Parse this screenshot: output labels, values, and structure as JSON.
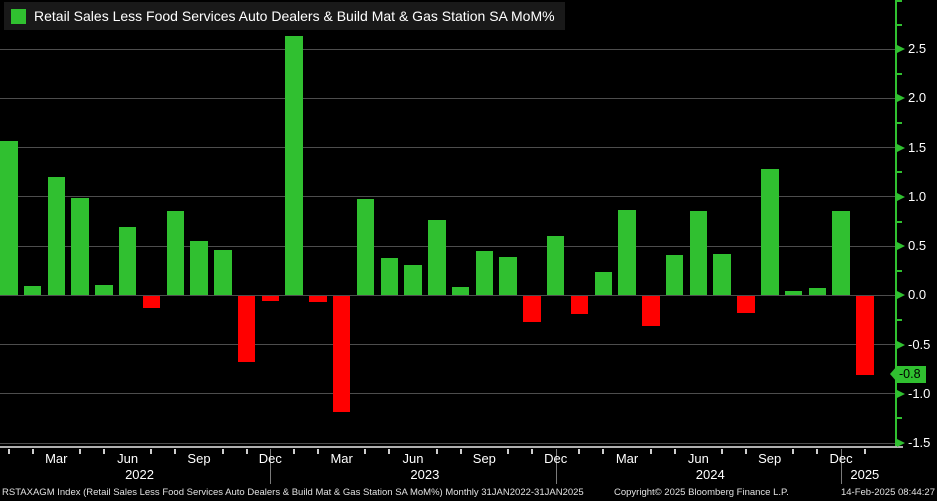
{
  "legend": {
    "label": "Retail Sales Less Food Services Auto Dealers & Build Mat & Gas Station SA MoM%",
    "swatch_color": "#30c030"
  },
  "footer": {
    "left": "RSTAXAGM Index (Retail Sales Less Food Services Auto Dealers & Build Mat & Gas Station SA MoM%)  Monthly 31JAN2022-31JAN2025",
    "center": "Copyright© 2025 Bloomberg Finance L.P.",
    "right": "14-Feb-2025 08:44:27"
  },
  "colors": {
    "background": "#000000",
    "positive": "#30c030",
    "negative": "#ff0000",
    "grid": "#4d4d4d",
    "y_axis": "#30c030",
    "x_axis": "#b0b0b0",
    "text": "#ffffff",
    "badge_text": "#000000"
  },
  "chart_data": {
    "type": "bar",
    "title": "Retail Sales Less Food Services Auto Dealers & Build Mat & Gas Station SA MoM%",
    "x": [
      "Jan 2022",
      "Feb 2022",
      "Mar 2022",
      "Apr 2022",
      "May 2022",
      "Jun 2022",
      "Jul 2022",
      "Aug 2022",
      "Sep 2022",
      "Oct 2022",
      "Nov 2022",
      "Dec 2022",
      "Jan 2023",
      "Feb 2023",
      "Mar 2023",
      "Apr 2023",
      "May 2023",
      "Jun 2023",
      "Jul 2023",
      "Aug 2023",
      "Sep 2023",
      "Oct 2023",
      "Nov 2023",
      "Dec 2023",
      "Jan 2024",
      "Feb 2024",
      "Mar 2024",
      "Apr 2024",
      "May 2024",
      "Jun 2024",
      "Jul 2024",
      "Aug 2024",
      "Sep 2024",
      "Oct 2024",
      "Nov 2024",
      "Dec 2024",
      "Jan 2025"
    ],
    "values": [
      1.57,
      0.1,
      1.2,
      0.99,
      0.11,
      0.69,
      -0.12,
      0.86,
      0.55,
      0.46,
      -0.67,
      -0.05,
      2.63,
      -0.06,
      -1.17,
      0.98,
      0.38,
      0.31,
      0.77,
      0.09,
      0.45,
      0.39,
      -0.26,
      0.6,
      -0.18,
      0.24,
      0.87,
      -0.3,
      0.41,
      0.86,
      0.42,
      -0.17,
      1.28,
      0.04,
      0.07,
      0.86,
      -0.8
    ],
    "ylim": [
      -1.54,
      3.0
    ],
    "yticks": [
      2.5,
      2.0,
      1.5,
      1.0,
      0.5,
      0.0,
      -0.5,
      -1.0,
      -1.5
    ],
    "yticks_minor": [
      3.0,
      2.75,
      2.25,
      1.75,
      1.25,
      0.75,
      0.25,
      -0.25,
      -0.75,
      -1.25
    ],
    "x_labeled_months": [
      "Mar",
      "Jun",
      "Sep",
      "Dec"
    ],
    "year_separator_month": "Dec",
    "grid": "on",
    "legend_position": "top-left",
    "last_value": -0.8,
    "last_value_label": "-0.8"
  }
}
